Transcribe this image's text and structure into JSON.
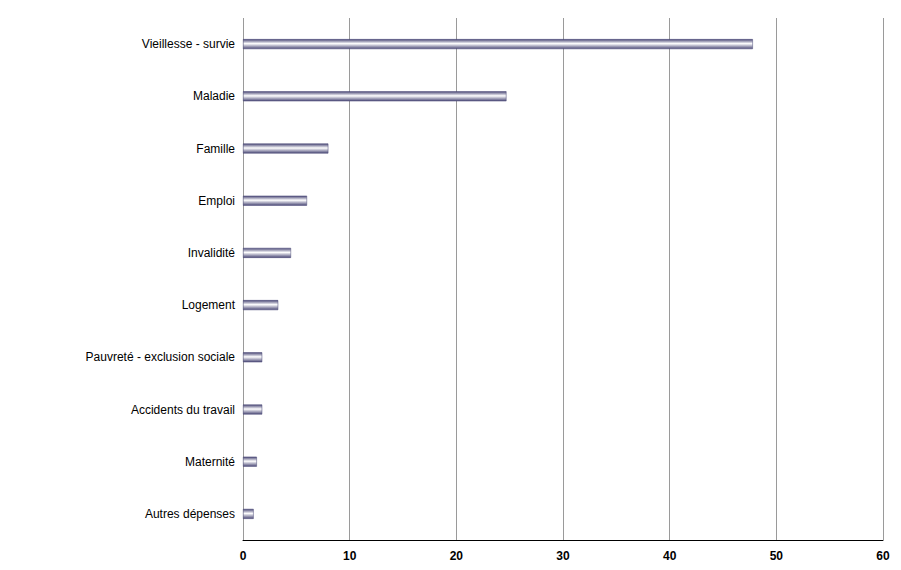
{
  "chart_data": {
    "type": "bar",
    "orientation": "horizontal",
    "categories": [
      "Vieillesse - survie",
      "Maladie",
      "Famille",
      "Emploi",
      "Invalidité",
      "Logement",
      "Pauvreté - exclusion sociale",
      "Accidents du travail",
      "Maternité",
      "Autres dépenses"
    ],
    "values": [
      47.8,
      24.7,
      8.0,
      6.0,
      4.5,
      3.3,
      1.8,
      1.8,
      1.3,
      1.0
    ],
    "color": "#4b4977",
    "xlim": [
      0,
      60
    ],
    "xticks": [
      0,
      10,
      20,
      30,
      40,
      50,
      60
    ],
    "grid": true
  }
}
